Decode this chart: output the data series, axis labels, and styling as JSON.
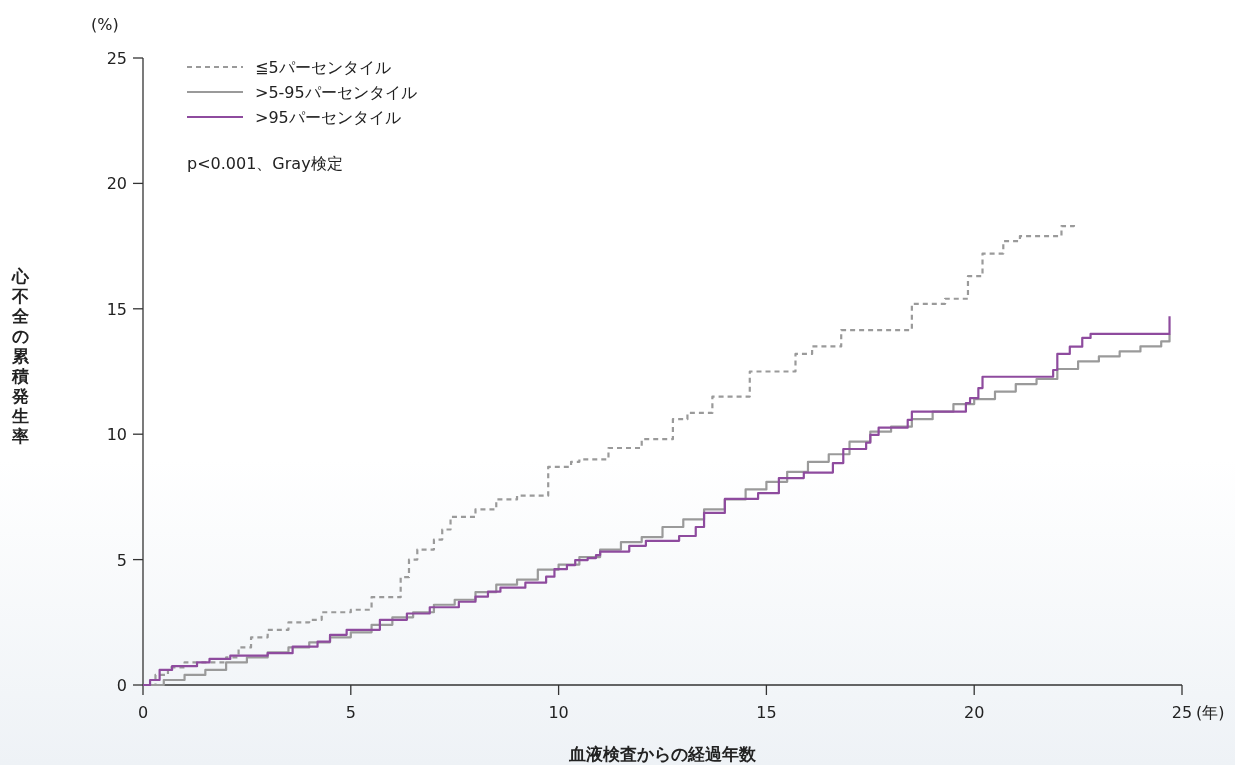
{
  "chart_data": {
    "type": "step",
    "ylabel": "心不全の累積発生率",
    "xlabel": "血液検査からの経過年数",
    "annotations": [
      "(%)",
      "(年)",
      "p<0.001、Gray検定"
    ],
    "xlim": [
      0,
      25
    ],
    "ylim": [
      0,
      25
    ],
    "xticks": [
      0,
      5,
      10,
      15,
      20,
      25
    ],
    "yticks": [
      0,
      5,
      10,
      15,
      20,
      25
    ],
    "grid": false,
    "legend": "top left",
    "series": [
      {
        "name": "≦5パーセンタイル",
        "color": "#9a9a9a",
        "line_style": "dashed",
        "x": [
          0,
          0.3,
          0.6,
          1.0,
          2.0,
          2.3,
          2.6,
          3.0,
          3.5,
          4.0,
          4.3,
          5.0,
          5.5,
          6.2,
          6.4,
          6.6,
          7.0,
          7.2,
          7.4,
          8.0,
          8.5,
          9.0,
          9.75,
          10.3,
          10.5,
          11.2,
          12.0,
          12.75,
          13.1,
          13.7,
          14.6,
          14.9,
          15.7,
          16.1,
          16.8,
          18.5,
          19.3,
          19.85,
          20.2,
          20.7,
          21.1,
          22.1,
          22.4
        ],
        "values": [
          0,
          0.4,
          0.7,
          0.9,
          1.1,
          1.5,
          1.9,
          2.2,
          2.5,
          2.6,
          2.9,
          3.0,
          3.5,
          4.3,
          5.0,
          5.4,
          5.8,
          6.2,
          6.7,
          7.0,
          7.4,
          7.55,
          8.7,
          8.9,
          9.0,
          9.45,
          9.8,
          10.6,
          10.85,
          11.5,
          12.5,
          12.5,
          13.2,
          13.5,
          14.15,
          15.2,
          15.4,
          16.3,
          17.2,
          17.7,
          17.9,
          18.3,
          18.5
        ]
      },
      {
        "name": ">5-95パーセンタイル",
        "color": "#9a9a9a",
        "line_style": "solid",
        "x": [
          0,
          0.5,
          1,
          1.5,
          2,
          2.5,
          3,
          3.5,
          4,
          4.5,
          5,
          5.5,
          6,
          6.5,
          7,
          7.5,
          8,
          8.5,
          9,
          9.5,
          10,
          10.5,
          11,
          11.5,
          12,
          12.5,
          13,
          13.5,
          14,
          14.5,
          15,
          15.5,
          16,
          16.5,
          17,
          17.5,
          18,
          18.5,
          19,
          19.5,
          20,
          20.5,
          21,
          21.5,
          22,
          22.5,
          23,
          23.5,
          24,
          24.5,
          24.7
        ],
        "values": [
          0,
          0.2,
          0.4,
          0.6,
          0.9,
          1.1,
          1.3,
          1.5,
          1.7,
          1.9,
          2.1,
          2.4,
          2.7,
          2.9,
          3.2,
          3.4,
          3.7,
          4.0,
          4.2,
          4.6,
          4.8,
          5.1,
          5.4,
          5.7,
          5.9,
          6.3,
          6.6,
          7.0,
          7.4,
          7.8,
          8.1,
          8.5,
          8.9,
          9.2,
          9.7,
          10.1,
          10.3,
          10.6,
          10.9,
          11.2,
          11.4,
          11.7,
          12.0,
          12.2,
          12.6,
          12.9,
          13.1,
          13.3,
          13.5,
          13.7,
          14.0
        ]
      },
      {
        "name": ">95パーセンタイル",
        "color": "#8e4b9e",
        "line_style": "solid",
        "x": [
          0,
          0.17,
          0.4,
          0.7,
          1.3,
          1.6,
          2.1,
          3.0,
          3.6,
          4.2,
          4.5,
          4.9,
          5.7,
          6.35,
          6.9,
          7.6,
          8.0,
          8.3,
          8.6,
          9.2,
          9.7,
          9.9,
          10.2,
          10.4,
          10.7,
          10.9,
          11.0,
          11.7,
          12.1,
          12.9,
          13.3,
          13.5,
          14.0,
          14.8,
          15.3,
          15.9,
          16.6,
          16.85,
          17.4,
          17.5,
          17.7,
          18.4,
          18.5,
          19.8,
          19.9,
          20.1,
          20.2,
          21.9,
          22.0,
          22.3,
          22.6,
          22.8,
          24.7,
          24.7
        ],
        "values": [
          0,
          0.2,
          0.6,
          0.75,
          0.9,
          1.04,
          1.17,
          1.27,
          1.53,
          1.73,
          2.0,
          2.2,
          2.6,
          2.85,
          3.1,
          3.32,
          3.52,
          3.72,
          3.88,
          4.08,
          4.32,
          4.62,
          4.78,
          4.98,
          5.06,
          5.18,
          5.32,
          5.55,
          5.75,
          5.94,
          6.3,
          6.86,
          7.42,
          7.65,
          8.25,
          8.47,
          8.85,
          9.41,
          9.66,
          9.97,
          10.26,
          10.57,
          10.9,
          11.24,
          11.44,
          11.84,
          12.29,
          12.56,
          13.2,
          13.49,
          13.84,
          14.0,
          14.0,
          14.7
        ]
      }
    ]
  }
}
